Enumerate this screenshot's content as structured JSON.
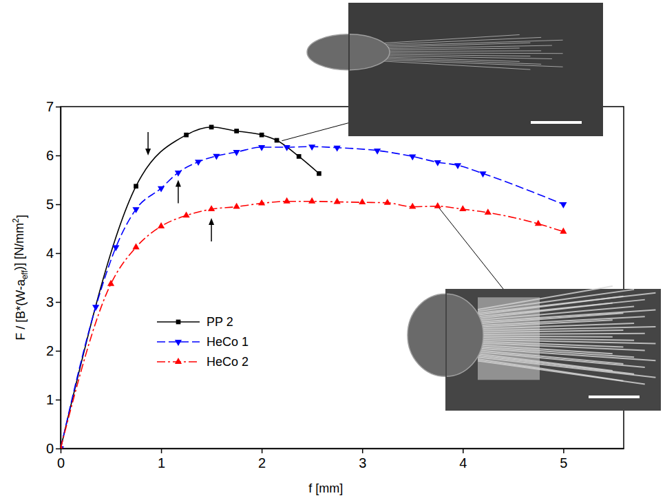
{
  "chart_data": {
    "type": "line",
    "xlabel": "f   [mm]",
    "ylabel": [
      "F / [B*(W-a",
      "eff",
      ")]  [N/mm",
      "2",
      "]"
    ],
    "xlim": [
      0,
      5.6
    ],
    "xticks": [
      0,
      1,
      2,
      3,
      4,
      5
    ],
    "ylim": [
      0,
      7
    ],
    "yticks": [
      0,
      1,
      2,
      3,
      4,
      5,
      6,
      7
    ],
    "legend": "center",
    "series": [
      {
        "name": "PP 2",
        "color": "#000000",
        "marker": "square",
        "line_style": "solid",
        "x": [
          0,
          0.75,
          1.25,
          1.5,
          1.75,
          2.0,
          2.15,
          2.37,
          2.57
        ],
        "values": [
          0,
          5.37,
          6.42,
          6.58,
          6.5,
          6.42,
          6.31,
          5.98,
          5.63
        ]
      },
      {
        "name": "HeCo 1",
        "color": "#0000ff",
        "marker": "triangle-down",
        "line_style": "dashed",
        "x": [
          0,
          0.35,
          0.55,
          0.75,
          1.0,
          1.17,
          1.37,
          1.55,
          1.75,
          2.0,
          2.25,
          2.5,
          2.75,
          3.15,
          3.5,
          3.75,
          3.95,
          4.2,
          5.0
        ],
        "values": [
          0,
          2.9,
          4.12,
          4.9,
          5.33,
          5.65,
          5.87,
          5.99,
          6.07,
          6.17,
          6.17,
          6.18,
          6.16,
          6.1,
          5.98,
          5.86,
          5.8,
          5.63,
          5.0
        ]
      },
      {
        "name": "HeCo 2",
        "color": "#ff0000",
        "marker": "triangle-up",
        "line_style": "dash-dot",
        "x": [
          0,
          0.5,
          0.75,
          1.0,
          1.25,
          1.5,
          1.75,
          2.0,
          2.25,
          2.5,
          2.75,
          3.0,
          3.25,
          3.5,
          3.75,
          4.0,
          4.25,
          4.75,
          5.0
        ],
        "values": [
          0,
          3.37,
          4.12,
          4.55,
          4.77,
          4.9,
          4.95,
          5.02,
          5.06,
          5.06,
          5.05,
          5.04,
          5.03,
          4.95,
          4.96,
          4.9,
          4.83,
          4.6,
          4.44
        ]
      }
    ],
    "arrows": [
      {
        "x": 0.87,
        "y": 6.0,
        "direction": "down"
      },
      {
        "x": 1.17,
        "y": 5.5,
        "direction": "up"
      },
      {
        "x": 1.5,
        "y": 4.72,
        "direction": "up"
      }
    ],
    "callouts": [
      {
        "x": 2.2,
        "y": 6.3
      },
      {
        "x": 3.75,
        "y": 4.96
      }
    ]
  }
}
